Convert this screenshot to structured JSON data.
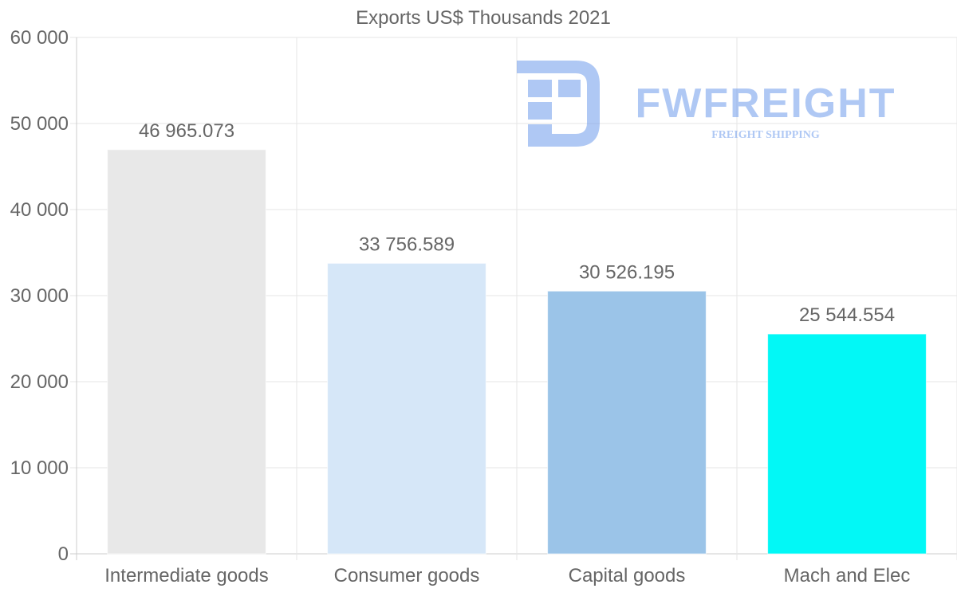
{
  "chart_data": {
    "type": "bar",
    "title": "Exports US$ Thousands 2021",
    "categories": [
      "Intermediate goods",
      "Consumer goods",
      "Capital goods",
      "Mach and Elec"
    ],
    "values": [
      46965.073,
      33756.589,
      30526.195,
      25544.554
    ],
    "value_labels": [
      "46 965.073",
      "33 756.589",
      "30 526.195",
      "25 544.554"
    ],
    "bar_colors": [
      "#e8e8e8",
      "#d6e7f8",
      "#9bc4e8",
      "#02f8f6"
    ],
    "ylim": [
      0,
      60000
    ],
    "yticks": [
      0,
      10000,
      20000,
      30000,
      40000,
      50000,
      60000
    ],
    "ytick_labels": [
      "0",
      "10 000",
      "20 000",
      "30 000",
      "40 000",
      "50 000",
      "60 000"
    ],
    "xlabel": "",
    "ylabel": "",
    "grid": true
  },
  "watermark": {
    "brand": "FWFREIGHT",
    "tagline": "FREIGHT SHIPPING",
    "color": "#6f9cec"
  },
  "colors": {
    "text": "#666666",
    "grid": "#e6e6e6",
    "axis": "#cccccc"
  }
}
